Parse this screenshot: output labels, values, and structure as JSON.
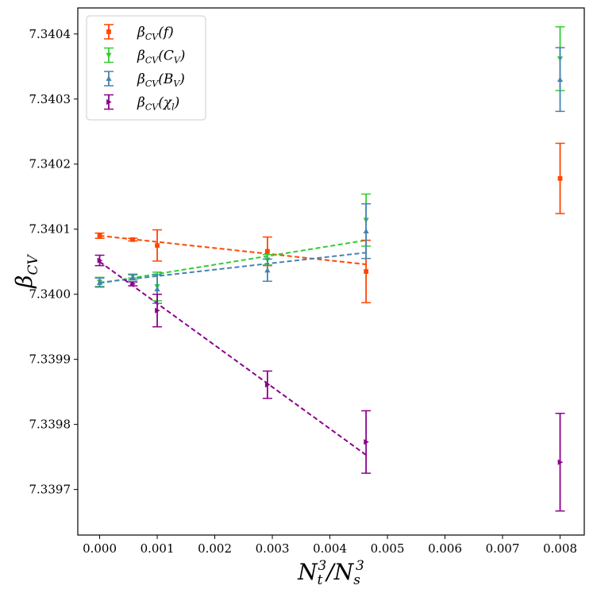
{
  "chart_data": {
    "type": "scatter",
    "title": "",
    "xlabel": "N_t^3/N_s^3",
    "ylabel": "β_CV",
    "xlim": [
      -0.00038,
      0.00842
    ],
    "ylim": [
      7.33963,
      7.34044
    ],
    "x_ticks": [
      0.0,
      0.001,
      0.002,
      0.003,
      0.004,
      0.005,
      0.006,
      0.007,
      0.008
    ],
    "x_tick_labels": [
      "0.000",
      "0.001",
      "0.002",
      "0.003",
      "0.004",
      "0.005",
      "0.006",
      "0.007",
      "0.008"
    ],
    "y_ticks": [
      7.3397,
      7.3398,
      7.3399,
      7.34,
      7.3401,
      7.3402,
      7.3403,
      7.3404
    ],
    "y_tick_labels": [
      "7.3397",
      "7.3398",
      "7.3399",
      "7.3400",
      "7.3401",
      "7.3402",
      "7.3403",
      "7.3404"
    ],
    "grid": false,
    "legend_position": "top-left",
    "series": [
      {
        "name": "β_CV(f)",
        "legend_label": "βCV(f)",
        "color": "#ff4500",
        "marker": "square",
        "x": [
          0.0,
          0.000576,
          0.001,
          0.002915,
          0.004629,
          0.008
        ],
        "y": [
          7.34009,
          7.340084,
          7.340075,
          7.340066,
          7.340035,
          7.340178
        ],
        "yerr": [
          4e-06,
          2e-06,
          2.4e-05,
          2.2e-05,
          4.8e-05,
          5.4e-05
        ],
        "fit": {
          "x": [
            0.0,
            0.004629
          ],
          "y": [
            7.34009,
            7.340046
          ]
        }
      },
      {
        "name": "β_CV(C_V)",
        "legend_label": "βCV(CV)",
        "color": "#32cd32",
        "marker": "triangle-down",
        "x": [
          0.0,
          0.000576,
          0.001,
          0.002915,
          0.004629,
          0.008
        ],
        "y": [
          7.340019,
          7.340028,
          7.340012,
          7.340053,
          7.340114,
          7.340362
        ],
        "yerr": [
          7e-06,
          3e-06,
          2.2e-05,
          8e-06,
          4e-05,
          4.9e-05
        ],
        "fit": {
          "x": [
            0.0,
            0.004629
          ],
          "y": [
            7.340017,
            7.340083
          ]
        }
      },
      {
        "name": "β_CV(B_V)",
        "legend_label": "βCV(BV)",
        "color": "#4682b4",
        "marker": "triangle-up",
        "x": [
          0.0,
          0.000576,
          0.001,
          0.002915,
          0.004629,
          0.008
        ],
        "y": [
          7.340018,
          7.340026,
          7.340008,
          7.340037,
          7.340097,
          7.34033
        ],
        "yerr": [
          7e-06,
          4e-06,
          2.2e-05,
          1.7e-05,
          4.2e-05,
          4.9e-05
        ],
        "fit": {
          "x": [
            0.0,
            0.004629
          ],
          "y": [
            7.340018,
            7.340064
          ]
        }
      },
      {
        "name": "β_CV(χ_l)",
        "legend_label": "βCV(χl)",
        "color": "#8b008b",
        "marker": "triangle-right",
        "x": [
          0.0,
          0.000576,
          0.001,
          0.002915,
          0.004629,
          0.008
        ],
        "y": [
          7.340052,
          7.340016,
          7.339975,
          7.339861,
          7.339773,
          7.339742
        ],
        "yerr": [
          8e-06,
          3e-06,
          2.5e-05,
          2.1e-05,
          4.8e-05,
          7.5e-05
        ],
        "fit": {
          "x": [
            0.0,
            0.004629
          ],
          "y": [
            7.34005,
            7.339753
          ]
        }
      }
    ]
  }
}
